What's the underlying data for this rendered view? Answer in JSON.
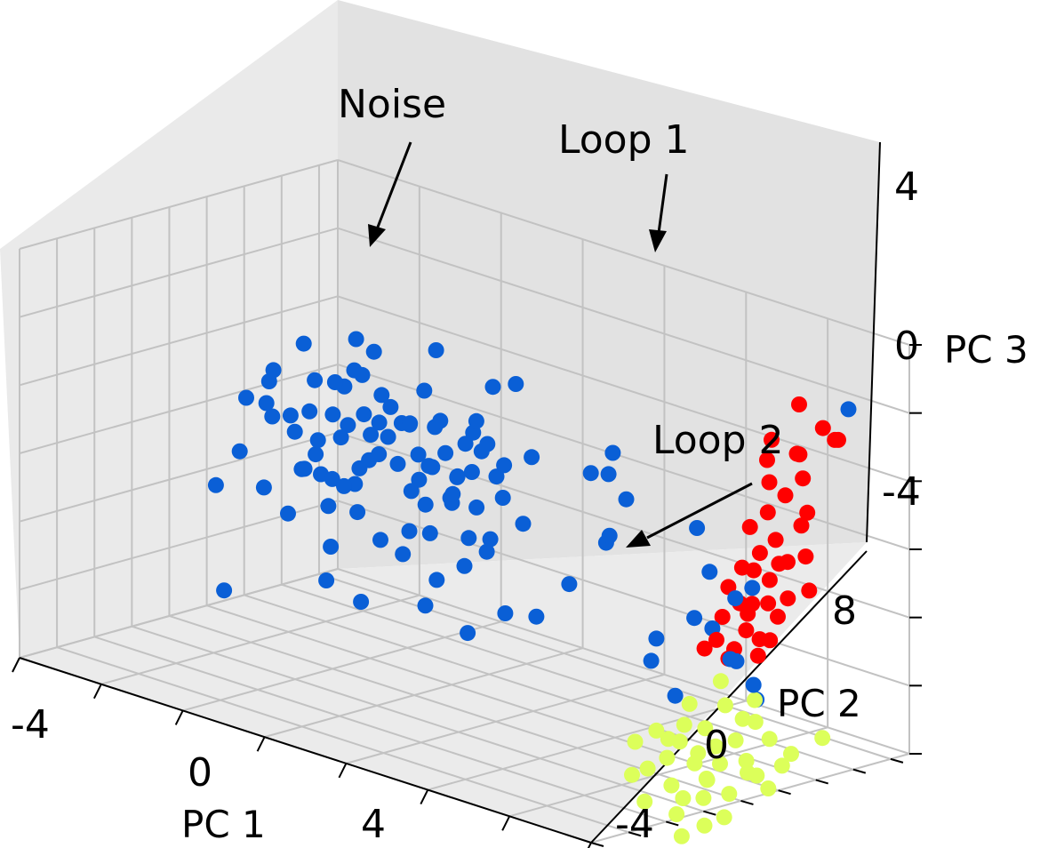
{
  "chart_data": {
    "type": "scatter",
    "projection": "3d",
    "title": "",
    "xlabel": "PC 1",
    "ylabel": "PC 2",
    "zlabel": "PC 3",
    "xlim": [
      -6,
      8
    ],
    "ylim": [
      -6,
      11
    ],
    "zlim": [
      -6,
      6
    ],
    "x_ticks": [
      "-4",
      "0",
      "4"
    ],
    "y_ticks": [
      "-4",
      "0",
      "8"
    ],
    "z_ticks": [
      "4",
      "0",
      "-4"
    ],
    "x_tick_values": [
      -4,
      0,
      4
    ],
    "y_tick_values": [
      -4,
      0,
      8
    ],
    "z_tick_values": [
      4,
      0,
      -4
    ],
    "grid": true,
    "legend": "none",
    "series": [
      {
        "name": "Noise",
        "color": "#0a5fd6",
        "points": [
          [
            -3.6,
            2.1,
            1.8
          ],
          [
            -3.2,
            2.6,
            0.4
          ],
          [
            -2.8,
            1.5,
            1.2
          ],
          [
            -2.4,
            3.0,
            2.1
          ],
          [
            -2.1,
            2.2,
            -0.5
          ],
          [
            -1.9,
            1.0,
            0.9
          ],
          [
            -1.6,
            2.8,
            1.5
          ],
          [
            -1.3,
            1.8,
            -1.1
          ],
          [
            -1.0,
            3.3,
            0.2
          ],
          [
            -0.8,
            2.0,
            2.5
          ],
          [
            -0.5,
            1.2,
            1.0
          ],
          [
            -0.3,
            2.5,
            -0.2
          ],
          [
            0.0,
            3.1,
            1.7
          ],
          [
            0.3,
            1.6,
            0.5
          ],
          [
            0.5,
            2.3,
            2.2
          ],
          [
            0.8,
            1.1,
            -0.8
          ],
          [
            1.0,
            2.9,
            0.8
          ],
          [
            1.3,
            1.9,
            1.9
          ],
          [
            1.5,
            2.6,
            -1.3
          ],
          [
            1.8,
            1.4,
            0.3
          ],
          [
            -3.4,
            3.4,
            -0.9
          ],
          [
            -2.9,
            0.8,
            2.6
          ],
          [
            -2.6,
            2.4,
            0.0
          ],
          [
            -2.2,
            1.2,
            1.6
          ],
          [
            -1.8,
            3.6,
            0.7
          ],
          [
            -1.5,
            2.1,
            -0.4
          ],
          [
            -1.2,
            0.7,
            1.3
          ],
          [
            -0.9,
            2.7,
            2.0
          ],
          [
            -0.6,
            1.5,
            -1.6
          ],
          [
            -0.2,
            3.4,
            0.4
          ],
          [
            0.1,
            2.0,
            1.1
          ],
          [
            0.4,
            0.9,
            2.3
          ],
          [
            0.7,
            2.4,
            0.0
          ],
          [
            1.1,
            3.2,
            1.4
          ],
          [
            1.4,
            1.0,
            0.6
          ],
          [
            1.7,
            2.2,
            2.0
          ],
          [
            2.0,
            1.7,
            -0.6
          ],
          [
            -3.0,
            1.8,
            -1.8
          ],
          [
            -2.5,
            3.1,
            1.1
          ],
          [
            -2.0,
            0.5,
            0.1
          ],
          [
            -1.7,
            2.5,
            2.8
          ],
          [
            -1.4,
            1.3,
            -0.3
          ],
          [
            -1.1,
            3.0,
            1.0
          ],
          [
            -0.7,
            0.6,
            0.6
          ],
          [
            -0.4,
            2.2,
            1.8
          ],
          [
            0.2,
            1.3,
            -1.0
          ],
          [
            0.6,
            3.0,
            0.5
          ],
          [
            0.9,
            1.7,
            1.5
          ],
          [
            1.2,
            2.7,
            2.4
          ],
          [
            1.6,
            0.8,
            1.2
          ],
          [
            -3.8,
            2.7,
            0.6
          ],
          [
            -3.3,
            1.3,
            1.4
          ],
          [
            -2.7,
            2.9,
            -0.7
          ],
          [
            -2.3,
            1.7,
            2.4
          ],
          [
            -1.9,
            2.6,
            1.1
          ],
          [
            -1.6,
            0.9,
            -0.9
          ],
          [
            -1.2,
            2.2,
            0.4
          ],
          [
            -0.8,
            3.5,
            1.4
          ],
          [
            -0.4,
            1.0,
            2.0
          ],
          [
            0.0,
            2.6,
            -0.5
          ],
          [
            0.4,
            1.9,
            0.9
          ],
          [
            0.8,
            3.4,
            1.8
          ],
          [
            1.2,
            1.4,
            0.2
          ],
          [
            1.6,
            2.9,
            0.9
          ],
          [
            2.2,
            2.0,
            1.6
          ],
          [
            -2.8,
            2.2,
            3.2
          ],
          [
            -1.4,
            2.9,
            3.4
          ],
          [
            0.2,
            2.1,
            3.0
          ],
          [
            -0.6,
            2.7,
            -2.2
          ],
          [
            -2.0,
            1.9,
            -2.4
          ],
          [
            -3.5,
            1.6,
            -1.2
          ],
          [
            1.0,
            2.5,
            -1.9
          ],
          [
            -1.0,
            1.4,
            3.1
          ],
          [
            0.6,
            3.6,
            -1.4
          ],
          [
            -2.4,
            3.5,
            1.9
          ],
          [
            2.4,
            1.5,
            0.8
          ],
          [
            2.6,
            2.6,
            1.9
          ],
          [
            2.3,
            2.8,
            -0.2
          ],
          [
            -4.3,
            2.4,
            1.0
          ],
          [
            -4.0,
            1.4,
            -0.3
          ],
          [
            3.5,
            3.8,
            1.6
          ],
          [
            3.9,
            4.1,
            2.3
          ],
          [
            4.3,
            3.0,
            2.0
          ],
          [
            4.0,
            4.6,
            0.9
          ],
          [
            3.6,
            4.4,
            -0.5
          ],
          [
            3.2,
            3.3,
            -1.7
          ],
          [
            4.6,
            2.4,
            0.4
          ],
          [
            2.9,
            2.2,
            -2.6
          ],
          [
            -0.8,
            0.9,
            -3.4
          ],
          [
            0.5,
            1.5,
            -3.1
          ],
          [
            1.4,
            1.8,
            -3.6
          ],
          [
            2.0,
            2.5,
            -2.9
          ],
          [
            -2.2,
            2.1,
            -3.5
          ],
          [
            0.0,
            3.2,
            -2.8
          ],
          [
            1.1,
            3.8,
            3.2
          ],
          [
            1.8,
            3.5,
            3.6
          ],
          [
            -1.7,
            2.6,
            3.7
          ],
          [
            -0.2,
            3.6,
            3.8
          ],
          [
            5.0,
            6.2,
            0.2
          ],
          [
            5.4,
            6.0,
            -0.9
          ],
          [
            5.8,
            6.5,
            -1.6
          ],
          [
            5.3,
            5.4,
            -2.2
          ],
          [
            6.0,
            5.8,
            -3.2
          ],
          [
            5.1,
            6.8,
            -2.8
          ],
          [
            6.4,
            6.1,
            -1.0
          ],
          [
            5.6,
            7.0,
            -3.6
          ],
          [
            6.2,
            6.6,
            -4.0
          ],
          [
            4.6,
            4.9,
            -3.0
          ],
          [
            4.2,
            5.5,
            -3.9
          ],
          [
            -2.2,
            -3.8,
            0.2
          ],
          [
            -4.2,
            1.0,
            -4.4
          ],
          [
            6.6,
            10.8,
            3.6
          ],
          [
            6.0,
            7.2,
            -4.6
          ],
          [
            5.2,
            4.6,
            -4.4
          ]
        ]
      },
      {
        "name": "Loop 1",
        "color": "#ff0000",
        "points": [
          [
            6.4,
            8.6,
            4.0
          ],
          [
            6.8,
            9.0,
            3.4
          ],
          [
            7.0,
            9.2,
            3.1
          ],
          [
            6.9,
            9.6,
            3.0
          ],
          [
            6.5,
            8.4,
            2.6
          ],
          [
            6.0,
            8.0,
            2.9
          ],
          [
            5.8,
            8.2,
            2.2
          ],
          [
            6.4,
            8.8,
            1.8
          ],
          [
            6.2,
            8.3,
            1.3
          ],
          [
            6.6,
            8.6,
            0.9
          ],
          [
            6.0,
            7.8,
            0.8
          ],
          [
            5.7,
            7.5,
            0.3
          ],
          [
            6.1,
            8.0,
            0.0
          ],
          [
            5.9,
            7.6,
            -0.4
          ],
          [
            6.3,
            8.2,
            -0.6
          ],
          [
            5.6,
            7.3,
            -0.9
          ],
          [
            6.0,
            7.9,
            -1.2
          ],
          [
            5.4,
            7.0,
            -1.5
          ],
          [
            5.8,
            7.4,
            -1.9
          ],
          [
            6.2,
            7.9,
            -2.2
          ],
          [
            5.3,
            6.9,
            -2.4
          ],
          [
            5.7,
            7.3,
            -2.7
          ],
          [
            6.1,
            7.7,
            -2.9
          ],
          [
            5.2,
            6.8,
            -3.1
          ],
          [
            5.5,
            7.1,
            -3.3
          ],
          [
            5.9,
            7.5,
            -3.4
          ],
          [
            6.4,
            8.0,
            -1.6
          ],
          [
            6.7,
            8.3,
            -0.3
          ],
          [
            6.5,
            8.5,
            0.5
          ],
          [
            5.9,
            8.1,
            1.6
          ],
          [
            6.3,
            8.7,
            2.5
          ],
          [
            5.6,
            7.6,
            -2.3
          ],
          [
            5.4,
            7.0,
            -3.6
          ],
          [
            5.0,
            6.6,
            -3.4
          ],
          [
            5.8,
            7.8,
            -3.0
          ],
          [
            6.1,
            7.6,
            -1.8
          ],
          [
            5.7,
            7.7,
            -1.0
          ],
          [
            6.6,
            8.7,
            -1.4
          ],
          [
            5.5,
            7.4,
            -2.0
          ],
          [
            6.0,
            8.4,
            -0.8
          ]
        ]
      },
      {
        "name": "Loop 2",
        "color": "#dcff5a",
        "points": [
          [
            5.4,
            6.6,
            -4.2
          ],
          [
            5.6,
            6.4,
            -4.8
          ],
          [
            5.8,
            6.9,
            -5.2
          ],
          [
            5.2,
            6.2,
            -5.6
          ],
          [
            5.0,
            5.8,
            -4.9
          ],
          [
            5.5,
            6.1,
            -6.0
          ],
          [
            5.9,
            6.3,
            -5.7
          ],
          [
            6.2,
            6.7,
            -5.1
          ],
          [
            6.0,
            7.1,
            -4.6
          ],
          [
            5.3,
            5.6,
            -6.2
          ],
          [
            5.1,
            5.3,
            -5.4
          ],
          [
            4.8,
            5.1,
            -5.9
          ],
          [
            5.7,
            5.9,
            -6.4
          ],
          [
            6.3,
            6.0,
            -6.1
          ],
          [
            6.5,
            6.8,
            -5.5
          ],
          [
            6.1,
            6.5,
            -6.6
          ],
          [
            5.6,
            5.4,
            -6.8
          ],
          [
            5.0,
            4.6,
            -6.3
          ],
          [
            4.6,
            4.9,
            -5.7
          ],
          [
            4.4,
            4.2,
            -6.0
          ],
          [
            4.8,
            4.0,
            -6.6
          ],
          [
            5.2,
            4.4,
            -7.0
          ],
          [
            5.8,
            4.8,
            -7.2
          ],
          [
            6.2,
            5.3,
            -7.0
          ],
          [
            6.6,
            5.9,
            -6.4
          ],
          [
            6.8,
            7.3,
            -5.9
          ],
          [
            7.2,
            8.1,
            -5.4
          ],
          [
            6.4,
            4.6,
            -7.5
          ],
          [
            5.6,
            3.8,
            -7.6
          ],
          [
            5.0,
            3.4,
            -7.4
          ],
          [
            4.6,
            3.6,
            -6.8
          ],
          [
            6.0,
            3.2,
            -8.0
          ],
          [
            6.4,
            3.0,
            -8.3
          ],
          [
            5.8,
            5.0,
            -6.7
          ],
          [
            5.4,
            5.2,
            -6.4
          ],
          [
            6.7,
            6.3,
            -6.8
          ],
          [
            6.9,
            6.6,
            -6.1
          ],
          [
            5.3,
            4.8,
            -7.4
          ],
          [
            4.9,
            5.5,
            -6.0
          ],
          [
            6.1,
            4.2,
            -7.8
          ]
        ]
      }
    ],
    "annotations": [
      {
        "text": "Noise",
        "target_series": "Noise"
      },
      {
        "text": "Loop 1",
        "target_series": "Loop 1"
      },
      {
        "text": "Loop 2",
        "target_series": "Loop 2"
      }
    ]
  }
}
